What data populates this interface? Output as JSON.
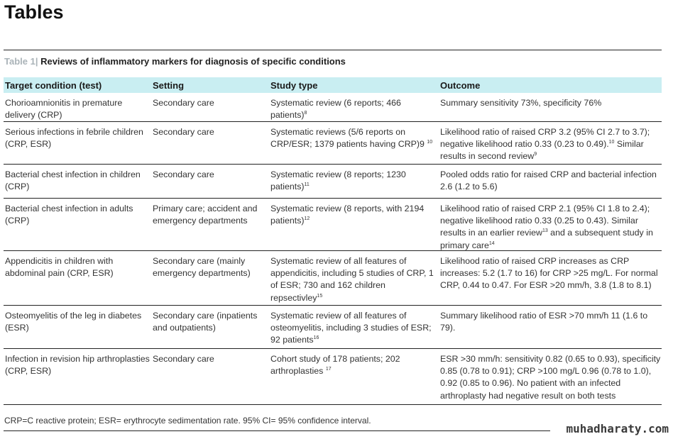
{
  "page_title": "Tables",
  "caption": {
    "label": "Table 1|",
    "text": " Reviews of inflammatory markers for diagnosis of specific conditions"
  },
  "headers": [
    "Target condition (test)",
    "Setting",
    "Study type",
    "Outcome"
  ],
  "rows": [
    [
      [
        {
          "t": "Chorioamnionitis in premature delivery (CRP)"
        }
      ],
      [
        {
          "t": "Secondary care"
        }
      ],
      [
        {
          "t": "Systematic review (6 reports; 466 patients)"
        },
        {
          "s": "8"
        }
      ],
      [
        {
          "t": "Summary sensitivity 73%, specificity 76%"
        }
      ]
    ],
    [
      [
        {
          "t": "Serious infections in febrile children (CRP, ESR)"
        }
      ],
      [
        {
          "t": "Secondary care"
        }
      ],
      [
        {
          "t": "Systematic reviews (5/6 reports on CRP/ESR; 1379 patients having CRP)9 "
        },
        {
          "s": "10"
        }
      ],
      [
        {
          "t": "Likelihood ratio of raised CRP 3.2 (95% CI 2.7 to 3.7); negative likelihood ratio 0.33 (0.23 to 0.49)."
        },
        {
          "s": "10"
        },
        {
          "t": " Similar results in second review"
        },
        {
          "s": "9"
        }
      ]
    ],
    [
      [
        {
          "t": "Bacterial chest infection in children (CRP)"
        }
      ],
      [
        {
          "t": "Secondary care"
        }
      ],
      [
        {
          "t": "Systematic review (8 reports; 1230 patients)"
        },
        {
          "s": "11"
        }
      ],
      [
        {
          "t": "Pooled odds ratio for raised CRP and bacterial infection 2.6 (1.2 to 5.6)"
        }
      ]
    ],
    [
      [
        {
          "t": "Bacterial chest infection in adults (CRP)"
        }
      ],
      [
        {
          "t": "Primary care; accident and emergency departments"
        }
      ],
      [
        {
          "t": "Systematic review (8 reports, with 2194 patients)"
        },
        {
          "s": "12"
        }
      ],
      [
        {
          "t": "Likelihood ratio of raised CRP 2.1 (95% CI 1.8 to 2.4); negative likelihood ratio 0.33 (0.25 to 0.43). Similar results in an earlier review"
        },
        {
          "s": "13"
        },
        {
          "t": " and a subsequent study in primary care"
        },
        {
          "s": "14"
        }
      ]
    ],
    [
      [
        {
          "t": "Appendicitis in children with abdominal pain (CRP, ESR)"
        }
      ],
      [
        {
          "t": "Secondary care (mainly emergency departments)"
        }
      ],
      [
        {
          "t": "Systematic review of all features of appendicitis, including 5 studies of CRP, 1 of ESR; 730 and 162 children repsectivley"
        },
        {
          "s": "15"
        }
      ],
      [
        {
          "t": "Likelihood ratio of raised CRP increases as CRP increases: 5.2 (1.7 to 16) for CRP >25 mg/L. For normal CRP, 0.44 to 0.47. For ESR >20 mm/h, 3.8 (1.8 to 8.1)"
        }
      ]
    ],
    [
      [
        {
          "t": "Osteomyelitis of the leg in diabetes (ESR)"
        }
      ],
      [
        {
          "t": "Secondary care (inpatients and outpatients)"
        }
      ],
      [
        {
          "t": "Systematic review of all features of osteomyelitis, including 3 studies of ESR; 92 patients"
        },
        {
          "s": "16"
        }
      ],
      [
        {
          "t": "Summary likelihood ratio of ESR >70 mm/h 11 (1.6 to 79)."
        }
      ]
    ],
    [
      [
        {
          "t": "Infection in revision hip arthroplasties (CRP, ESR)"
        }
      ],
      [
        {
          "t": "Secondary care"
        }
      ],
      [
        {
          "t": "Cohort study of 178 patients; 202 arthroplasties "
        },
        {
          "s": "17"
        }
      ],
      [
        {
          "t": "ESR >30 mm/h: sensitivity 0.82 (0.65 to 0.93), specificity 0.85 (0.78 to 0.91); CRP >100 mg/L 0.96 (0.78 to 1.0), 0.92 (0.85 to 0.96). No patient with an infected arthroplasty had negative result on both tests"
        }
      ]
    ]
  ],
  "footnote": "CRP=C reactive protein; ESR= erythrocyte sedimentation rate. 95% CI= 95% confidence interval.",
  "watermark": "muhadharaty.com"
}
